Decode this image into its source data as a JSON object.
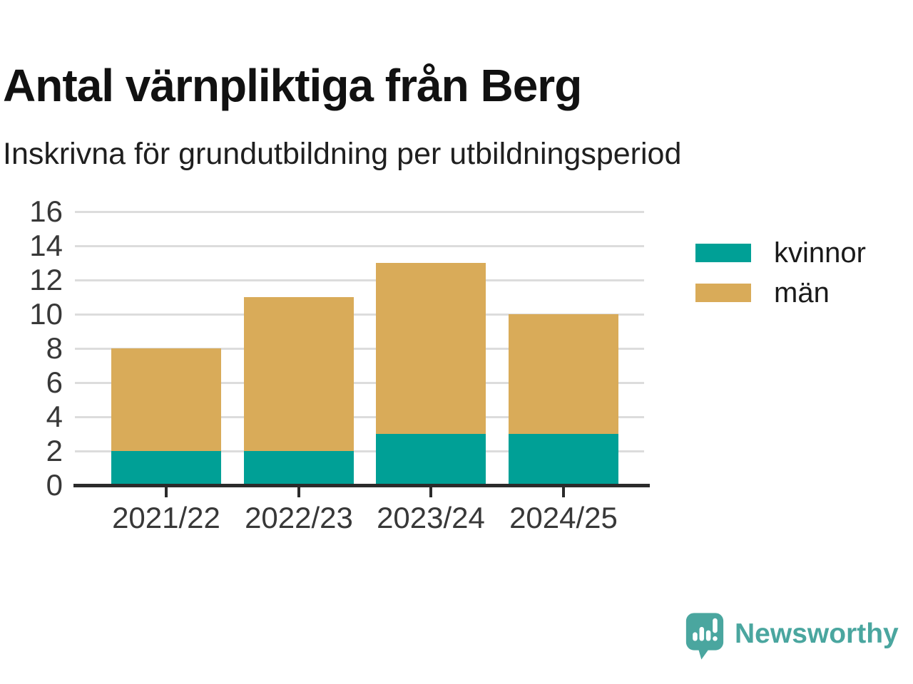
{
  "chart_data": {
    "type": "bar",
    "stacked": true,
    "title": "Antal värnpliktiga från Berg",
    "subtitle": "Inskrivna för grundutbildning per utbildningsperiod",
    "categories": [
      "2021/22",
      "2022/23",
      "2023/24",
      "2024/25"
    ],
    "series": [
      {
        "name": "kvinnor",
        "color": "#00a096",
        "values": [
          2,
          2,
          3,
          3
        ]
      },
      {
        "name": "män",
        "color": "#d9ab59",
        "values": [
          6,
          9,
          10,
          7
        ]
      }
    ],
    "totals": [
      8,
      11,
      13,
      10
    ],
    "xlabel": "",
    "ylabel": "",
    "ylim": [
      0,
      16
    ],
    "yticks": [
      0,
      2,
      4,
      6,
      8,
      10,
      12,
      14,
      16
    ],
    "grid": true,
    "legend_position": "right"
  },
  "branding": {
    "logo_text": "Newsworthy",
    "logo_color": "#4aa69f",
    "logo_icon": "speech-bubble-bar-chart-icon"
  },
  "style_colors": {
    "gridline": "#dcdcdc",
    "axis_line": "#2b2b2b",
    "axis_text": "#383838",
    "title_text": "#111111"
  }
}
